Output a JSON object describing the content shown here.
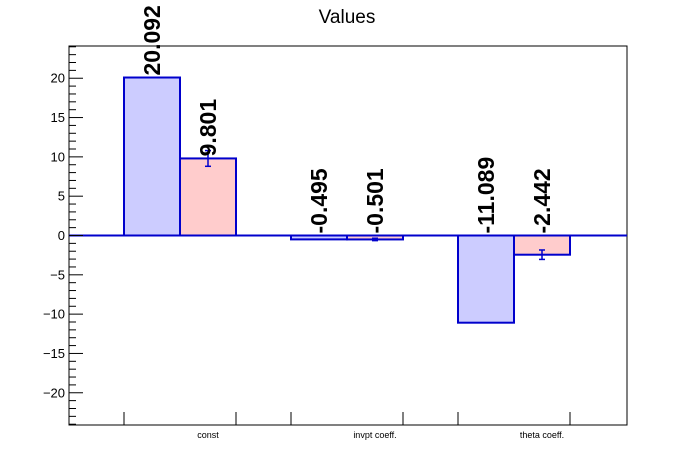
{
  "chart_data": {
    "type": "bar",
    "title": "Values",
    "xlabel": "",
    "ylabel": "",
    "categories": [
      "const",
      "invpt coeff.",
      "theta coeff."
    ],
    "series": [
      {
        "values": [
          20.092,
          -0.495,
          -11.089
        ],
        "errors": [
          0,
          0,
          0
        ],
        "labels": [
          "20.092",
          "-0.495",
          "-11.089"
        ],
        "fill": "#ccccff",
        "stroke": "#0000cc"
      },
      {
        "values": [
          9.801,
          -0.501,
          -2.442
        ],
        "errors": [
          1.0,
          0.15,
          0.6
        ],
        "labels": [
          "9.801",
          "-0.501",
          "-2.442"
        ],
        "fill": "#ffcccc",
        "stroke": "#0000cc"
      }
    ],
    "ylim": [
      -24.1,
      24.1
    ],
    "yticks": [
      -20,
      -15,
      -10,
      -5,
      0,
      5,
      10,
      15,
      20
    ],
    "ytick_labels": [
      "−20",
      "−15",
      "−10",
      "−5",
      "0",
      "5",
      "10",
      "15",
      "20"
    ],
    "grid": false,
    "legend": "none",
    "zero_line_color": "#0000cc",
    "errorbar_color": "#0000cc"
  }
}
